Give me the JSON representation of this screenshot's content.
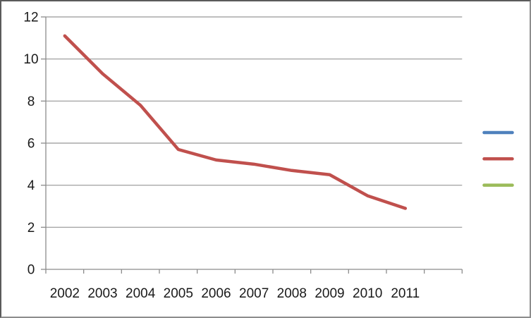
{
  "frame": {
    "background": "#ffffff",
    "border_color_topleft": "#5b5b5b",
    "border_color_bottomright": "#8d8d8d"
  },
  "chart_data": {
    "type": "line",
    "title": "",
    "subtitle": "",
    "xlabel": "",
    "ylabel": "",
    "categories": [
      "2002",
      "2003",
      "2004",
      "2005",
      "2006",
      "2007",
      "2008",
      "2009",
      "2010",
      "2011"
    ],
    "series": [
      {
        "name": "series-red",
        "color": "#C0504D",
        "values": [
          11.1,
          9.3,
          7.8,
          5.7,
          5.2,
          5.0,
          4.7,
          4.5,
          3.5,
          2.9
        ]
      }
    ],
    "ylim": [
      0,
      12
    ],
    "yticks": [
      0,
      2,
      4,
      6,
      8,
      10,
      12
    ],
    "grid": true,
    "gridline_color": "#969696",
    "axis_color": "#8c8c8c",
    "tick_label_color": "#1a1a1a",
    "legend": {
      "position": "right",
      "labels_visible": false,
      "entries": [
        {
          "name": "legend-swatch-blue",
          "color": "#4F81BD"
        },
        {
          "name": "legend-swatch-red",
          "color": "#C0504D"
        },
        {
          "name": "legend-swatch-green",
          "color": "#9BBB59"
        }
      ]
    }
  }
}
